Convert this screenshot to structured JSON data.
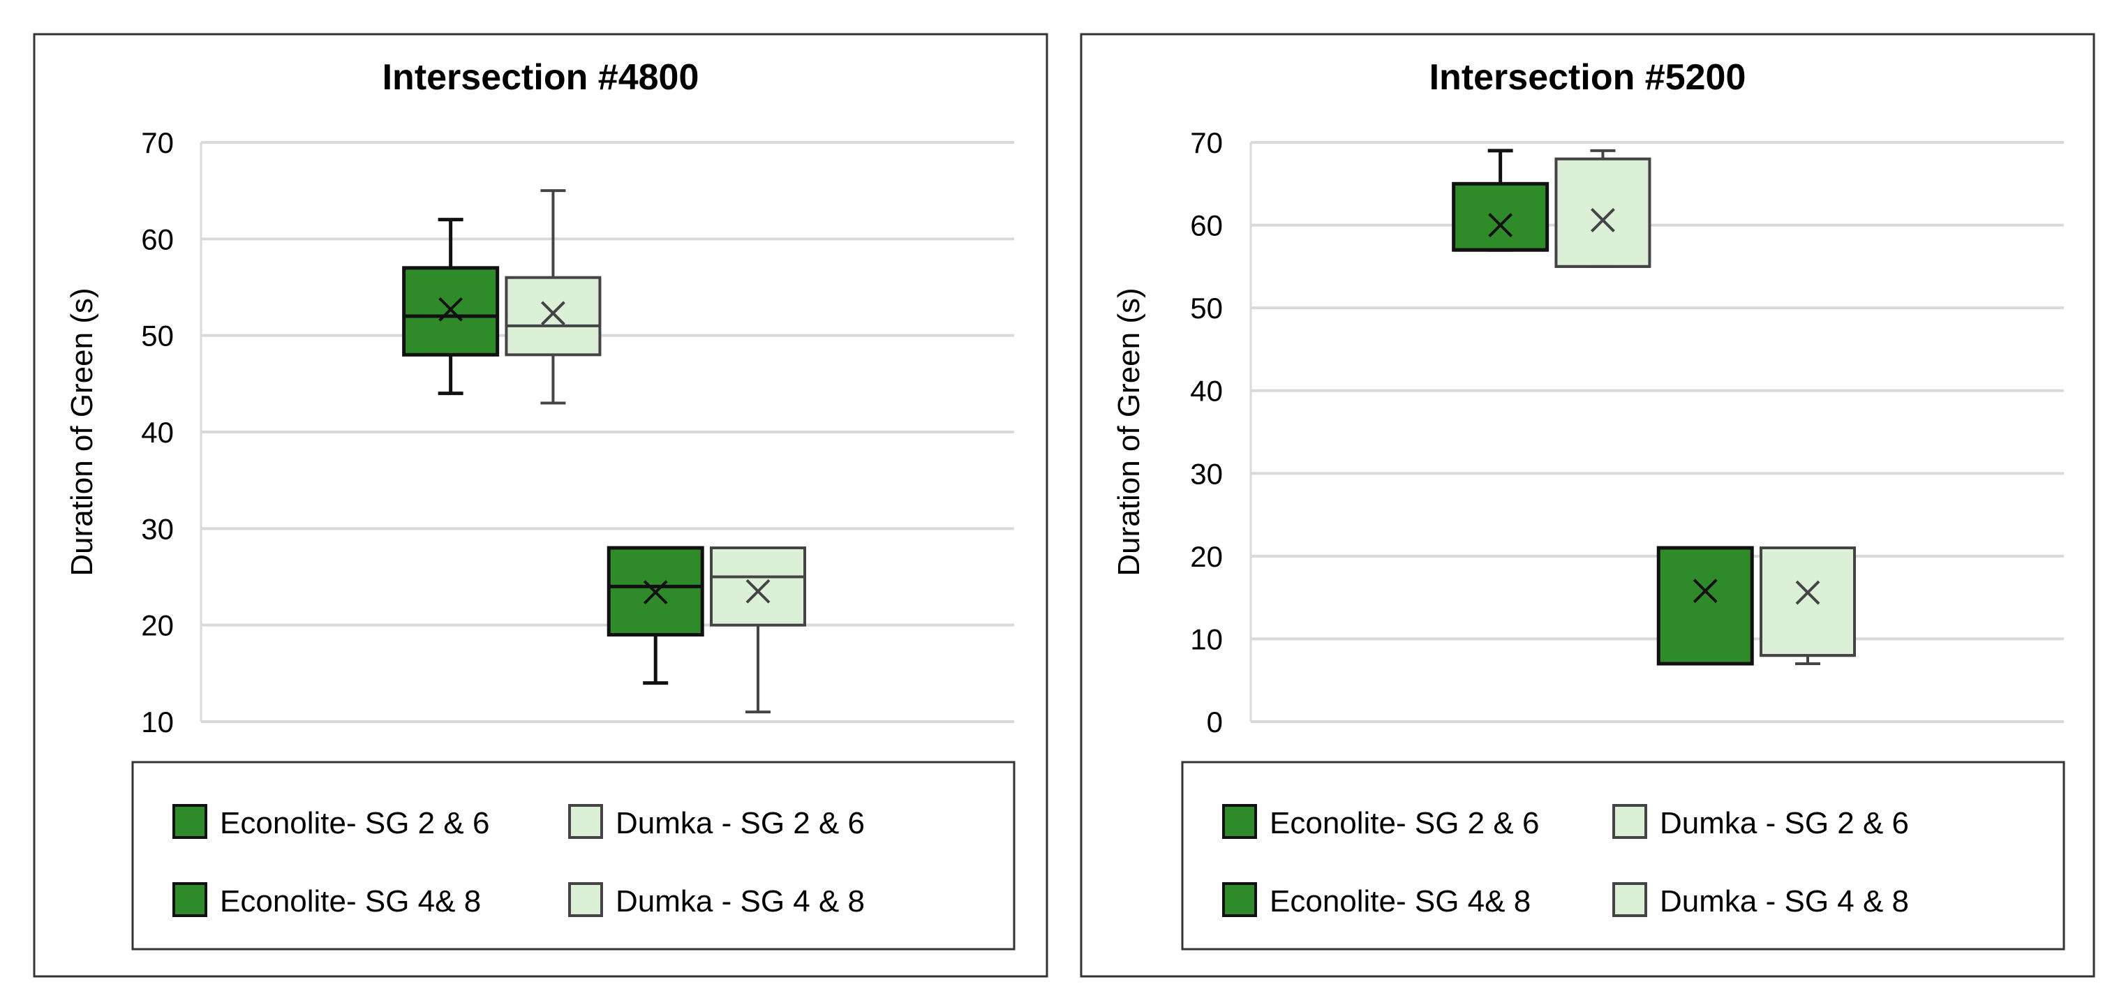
{
  "colors": {
    "econolite": "#2f8a2a",
    "dumka": "#dcf0d8",
    "econolite_stroke": "#111111",
    "dumka_stroke": "#444444",
    "grid": "#d9d9d9"
  },
  "chart_data": [
    {
      "type": "box",
      "title": "Intersection #4800",
      "ylabel": "Duration of Green (s)",
      "ylim": [
        10,
        70
      ],
      "yticks": [
        "10",
        "20",
        "30",
        "40",
        "50",
        "60",
        "70"
      ],
      "grid": true,
      "legend_position": "bottom",
      "legend": [
        "Econolite- SG 2 & 6",
        "Dumka - SG 2 & 6",
        "Econolite- SG 4& 8",
        "Dumka - SG 4 & 8"
      ],
      "series": [
        {
          "name": "Econolite- SG 2 & 6",
          "style": "econolite",
          "min": 44,
          "q1": 48,
          "median": 52,
          "q3": 57,
          "max": 62,
          "mean": 52.7
        },
        {
          "name": "Dumka - SG 2 & 6",
          "style": "dumka",
          "min": 43,
          "q1": 48,
          "median": 51,
          "q3": 56,
          "max": 65,
          "mean": 52.3
        },
        {
          "name": "Econolite- SG 4& 8",
          "style": "econolite",
          "min": 14,
          "q1": 19,
          "median": 24,
          "q3": 28,
          "max": 28,
          "mean": 23.4
        },
        {
          "name": "Dumka - SG 4 & 8",
          "style": "dumka",
          "min": 11,
          "q1": 20,
          "median": 25,
          "q3": 28,
          "max": 28,
          "mean": 23.5
        }
      ]
    },
    {
      "type": "box",
      "title": "Intersection #5200",
      "ylabel": "Duration of Green (s)",
      "ylim": [
        0,
        70
      ],
      "yticks": [
        "0",
        "10",
        "20",
        "30",
        "40",
        "50",
        "60",
        "70"
      ],
      "grid": true,
      "legend_position": "bottom",
      "legend": [
        "Econolite- SG 2 & 6",
        "Dumka - SG 2 & 6",
        "Econolite- SG 4& 8",
        "Dumka - SG 4 & 8"
      ],
      "series": [
        {
          "name": "Econolite- SG 2 & 6",
          "style": "econolite",
          "min": 57,
          "q1": 57,
          "median": 57,
          "q3": 65,
          "max": 69,
          "mean": 60.0
        },
        {
          "name": "Dumka - SG 2 & 6",
          "style": "dumka",
          "min": 55,
          "q1": 55,
          "median": 55,
          "q3": 68,
          "max": 69,
          "mean": 60.6
        },
        {
          "name": "Econolite- SG 4& 8",
          "style": "econolite",
          "min": 7,
          "q1": 7,
          "median": 7,
          "q3": 21,
          "max": 21,
          "mean": 15.8
        },
        {
          "name": "Dumka - SG 4 & 8",
          "style": "dumka",
          "min": 7,
          "q1": 8,
          "median": 8,
          "q3": 21,
          "max": 21,
          "mean": 15.6
        }
      ]
    }
  ]
}
